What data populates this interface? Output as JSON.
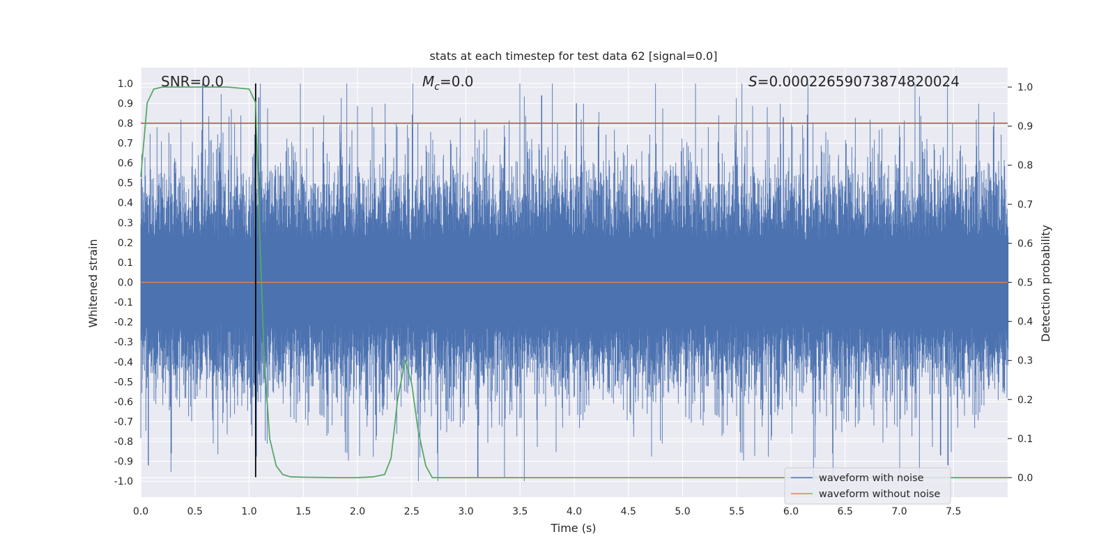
{
  "chart_data": {
    "type": "line",
    "title": "stats at each timestep for test data 62 [signal=0.0]",
    "xlabel": "Time (s)",
    "ylabel": "Whitened strain",
    "ylabel_right": "Detection probability",
    "xlim": [
      0.0,
      8.0
    ],
    "ylim": [
      -1.08,
      1.08
    ],
    "ylim_right": [
      -0.05,
      1.05
    ],
    "x_ticks": [
      "0.0",
      "0.5",
      "1.0",
      "1.5",
      "2.0",
      "2.5",
      "3.0",
      "3.5",
      "4.0",
      "4.5",
      "5.0",
      "5.5",
      "6.0",
      "6.5",
      "7.0",
      "7.5"
    ],
    "y_ticks": [
      "1.0",
      "0.9",
      "0.8",
      "0.7",
      "0.6",
      "0.5",
      "0.4",
      "0.3",
      "0.2",
      "0.1",
      "0.0",
      "-0.1",
      "-0.2",
      "-0.3",
      "-0.4",
      "-0.5",
      "-0.6",
      "-0.7",
      "-0.8",
      "-0.9",
      "-1.0"
    ],
    "y_ticks_right": [
      "1.0",
      "0.9",
      "0.8",
      "0.7",
      "0.6",
      "0.5",
      "0.4",
      "0.3",
      "0.2",
      "0.1",
      "0.0"
    ],
    "grid": true,
    "background": "#EAEAF2",
    "annotations": {
      "snr": "SNR=0.0",
      "mc_symbol": "M",
      "mc_sub": "c",
      "mc_value": "=0.0",
      "s_symbol": "S",
      "s_value": "=0.00022659073874820024"
    },
    "legend": {
      "placement": "lower-right",
      "entries": [
        "waveform with noise",
        "waveform without noise"
      ]
    },
    "series": [
      {
        "name": "waveform with noise",
        "axis": "left",
        "color": "#4C72B0",
        "description": "dense noise trace",
        "envelope_max": 1.0,
        "envelope_min": -1.0,
        "spikes": [
          {
            "x": 0.57,
            "y": 1.0
          },
          {
            "x": 1.09,
            "y": 0.93
          },
          {
            "x": 3.7,
            "y": 0.94
          },
          {
            "x": 4.02,
            "y": 0.9
          },
          {
            "x": 5.93,
            "y": 0.83
          },
          {
            "x": 3.11,
            "y": -0.98
          },
          {
            "x": 0.28,
            "y": -0.86
          },
          {
            "x": 0.07,
            "y": -0.92
          },
          {
            "x": 7.45,
            "y": -0.92
          },
          {
            "x": 7.38,
            "y": -0.87
          }
        ]
      },
      {
        "name": "waveform without noise",
        "axis": "left",
        "color": "#DD8452",
        "x": [
          0.0,
          8.0
        ],
        "y": [
          0.0,
          0.0
        ]
      },
      {
        "name": "detection probability",
        "axis": "right",
        "color": "#55A868",
        "x": [
          0.0,
          0.06,
          0.12,
          0.2,
          0.4,
          0.6,
          0.8,
          1.0,
          1.06,
          1.1,
          1.14,
          1.19,
          1.25,
          1.31,
          1.38,
          1.5,
          1.8,
          2.0,
          2.15,
          2.25,
          2.31,
          2.37,
          2.44,
          2.5,
          2.56,
          2.63,
          2.69,
          2.8,
          8.0
        ],
        "y": [
          0.77,
          0.96,
          0.995,
          1.0,
          1.0,
          1.0,
          1.0,
          0.995,
          0.96,
          0.6,
          0.3,
          0.1,
          0.03,
          0.008,
          0.002,
          0.001,
          0.0,
          0.0,
          0.002,
          0.008,
          0.05,
          0.2,
          0.3,
          0.24,
          0.12,
          0.03,
          0.0,
          0.0,
          0.0
        ]
      }
    ],
    "reference_lines": [
      {
        "orientation": "horizontal",
        "axis": "left",
        "value": 0.8,
        "color": "#C44E52"
      },
      {
        "orientation": "vertical",
        "value": 1.06,
        "color": "#000000",
        "ymin": -0.98,
        "ymax": 1.0
      }
    ]
  }
}
